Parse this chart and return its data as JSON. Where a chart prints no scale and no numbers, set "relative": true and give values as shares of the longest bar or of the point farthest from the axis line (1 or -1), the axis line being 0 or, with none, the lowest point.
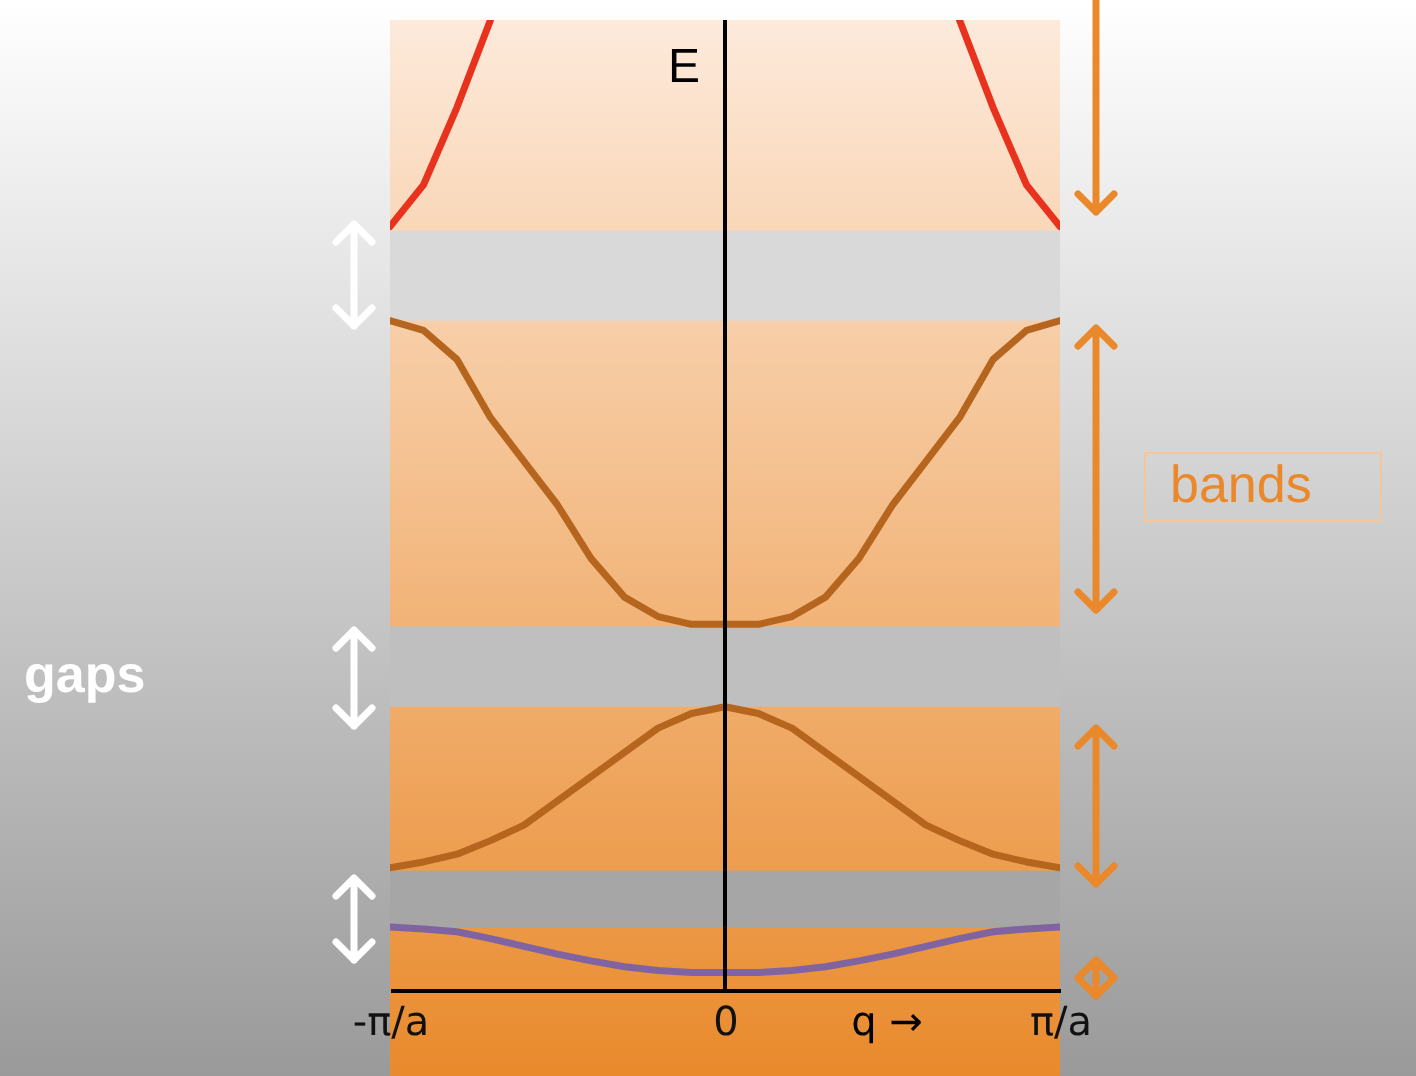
{
  "chart_data": {
    "type": "line",
    "relative": true,
    "xlabel": "q →",
    "ylabel": "E",
    "categories": [
      "-π/a",
      null,
      null,
      null,
      null,
      null,
      null,
      null,
      null,
      null,
      "0",
      null,
      null,
      null,
      null,
      null,
      null,
      null,
      null,
      null,
      "π/a"
    ],
    "annotations": [
      "gaps",
      "bands"
    ],
    "series": [
      {
        "color": "#e8321e",
        "values": [
          0.787,
          0.83,
          0.91,
          1.0,
          null,
          null,
          null,
          null,
          null,
          null,
          null,
          null,
          null,
          null,
          null,
          null,
          null,
          null,
          null,
          null,
          null
        ]
      },
      {
        "color": "#e8321e",
        "values": [
          null,
          null,
          null,
          null,
          null,
          null,
          null,
          null,
          null,
          null,
          null,
          null,
          null,
          null,
          null,
          null,
          null,
          1.0,
          0.91,
          0.83,
          0.787
        ]
      },
      {
        "color": "#b5651d",
        "values": [
          0.69,
          0.68,
          0.65,
          0.59,
          0.545,
          0.5,
          0.445,
          0.405,
          0.385,
          0.377,
          0.377,
          0.377,
          0.385,
          0.405,
          0.445,
          0.5,
          0.545,
          0.59,
          0.65,
          0.68,
          0.69
        ]
      },
      {
        "color": "#b5651d",
        "values": [
          0.126,
          0.132,
          0.14,
          0.154,
          0.17,
          0.195,
          0.22,
          0.245,
          0.27,
          0.285,
          0.292,
          0.285,
          0.27,
          0.245,
          0.22,
          0.195,
          0.17,
          0.154,
          0.14,
          0.132,
          0.126
        ]
      },
      {
        "color": "#8064a2",
        "values": [
          0.065,
          0.063,
          0.06,
          0.053,
          0.045,
          0.037,
          0.03,
          0.024,
          0.02,
          0.018,
          0.018,
          0.018,
          0.02,
          0.024,
          0.03,
          0.037,
          0.045,
          0.053,
          0.06,
          0.063,
          0.065
        ]
      }
    ],
    "bands": [
      {
        "axis": "y",
        "from": 0.69,
        "to": 0.783,
        "color": "#d9d9d9"
      },
      {
        "axis": "y",
        "from": 0.292,
        "to": 0.375,
        "color": "#bfbfbf"
      },
      {
        "axis": "y",
        "from": 0.065,
        "to": 0.123,
        "color": "#a6a6a6"
      }
    ],
    "ref_lines": [
      {
        "axis": "x",
        "value": "0",
        "color": "#000000"
      }
    ],
    "grid": false,
    "marker": "none",
    "line_style": "solid"
  }
}
